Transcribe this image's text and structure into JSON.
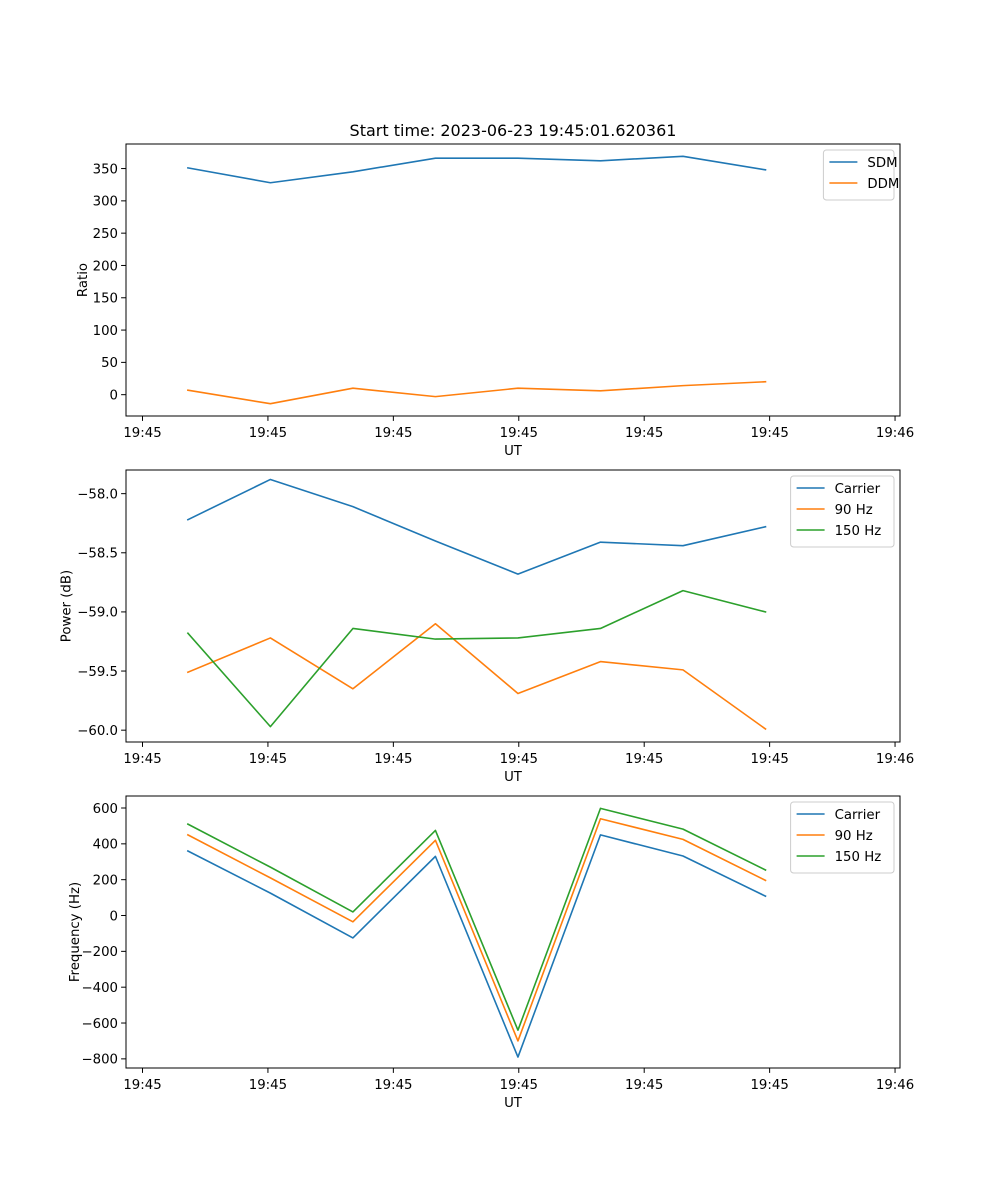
{
  "chart_data": [
    {
      "type": "line",
      "title": "Start time: 2023-06-23 19:45:01.620361",
      "xlabel": "UT",
      "ylabel": "Ratio",
      "x_index": [
        0,
        1,
        2,
        3,
        4,
        5,
        6,
        7
      ],
      "xlim": [
        -0.75,
        8.63
      ],
      "xticks": [
        -0.55,
        0.97,
        2.49,
        4.01,
        5.53,
        7.05,
        8.57
      ],
      "xtick_labels": [
        "19:45",
        "19:45",
        "19:45",
        "19:45",
        "19:45",
        "19:45",
        "19:46"
      ],
      "ylim": [
        -33,
        388
      ],
      "yticks": [
        0,
        50,
        100,
        150,
        200,
        250,
        300,
        350
      ],
      "ytick_labels": [
        "0",
        "50",
        "100",
        "150",
        "200",
        "250",
        "300",
        "350"
      ],
      "legend": "top-right",
      "series": [
        {
          "name": "SDM",
          "color": "#1f77b4",
          "values": [
            351,
            328,
            345,
            366,
            366,
            362,
            369,
            348
          ]
        },
        {
          "name": "DDM",
          "color": "#ff7f0e",
          "values": [
            7,
            -14,
            10,
            -3,
            10,
            6,
            14,
            20
          ]
        }
      ]
    },
    {
      "type": "line",
      "title": "",
      "xlabel": "UT",
      "ylabel": "Power (dB)",
      "x_index": [
        0,
        1,
        2,
        3,
        4,
        5,
        6,
        7
      ],
      "xlim": [
        -0.75,
        8.63
      ],
      "xticks": [
        -0.55,
        0.97,
        2.49,
        4.01,
        5.53,
        7.05,
        8.57
      ],
      "xtick_labels": [
        "19:45",
        "19:45",
        "19:45",
        "19:45",
        "19:45",
        "19:45",
        "19:46"
      ],
      "ylim": [
        -60.1,
        -57.8
      ],
      "yticks": [
        -60.0,
        -59.5,
        -59.0,
        -58.5,
        -58.0
      ],
      "ytick_labels": [
        "−60.0",
        "−59.5",
        "−59.0",
        "−58.5",
        "−58.0"
      ],
      "legend": "top-right",
      "series": [
        {
          "name": "Carrier",
          "color": "#1f77b4",
          "values": [
            -58.22,
            -57.88,
            -58.11,
            -58.4,
            -58.68,
            -58.41,
            -58.44,
            -58.28
          ]
        },
        {
          "name": "90 Hz",
          "color": "#ff7f0e",
          "values": [
            -59.51,
            -59.22,
            -59.65,
            -59.1,
            -59.69,
            -59.42,
            -59.49,
            -59.99
          ]
        },
        {
          "name": "150 Hz",
          "color": "#2ca02c",
          "values": [
            -59.18,
            -59.97,
            -59.14,
            -59.23,
            -59.22,
            -59.14,
            -58.82,
            -59.0
          ]
        }
      ]
    },
    {
      "type": "line",
      "title": "",
      "xlabel": "UT",
      "ylabel": "Frequency (Hz)",
      "x_index": [
        0,
        1,
        2,
        3,
        4,
        5,
        6,
        7
      ],
      "xlim": [
        -0.75,
        8.63
      ],
      "xticks": [
        -0.55,
        0.97,
        2.49,
        4.01,
        5.53,
        7.05,
        8.57
      ],
      "xtick_labels": [
        "19:45",
        "19:45",
        "19:45",
        "19:45",
        "19:45",
        "19:45",
        "19:46"
      ],
      "ylim": [
        -851,
        667
      ],
      "yticks": [
        -800,
        -600,
        -400,
        -200,
        0,
        200,
        400,
        600
      ],
      "ytick_labels": [
        "−800",
        "−600",
        "−400",
        "−200",
        "0",
        "200",
        "400",
        "600"
      ],
      "legend": "top-right",
      "series": [
        {
          "name": "Carrier",
          "color": "#1f77b4",
          "values": [
            360,
            125,
            -125,
            330,
            -790,
            450,
            332,
            108
          ]
        },
        {
          "name": "90 Hz",
          "color": "#ff7f0e",
          "values": [
            450,
            210,
            -35,
            420,
            -700,
            540,
            425,
            196
          ]
        },
        {
          "name": "150 Hz",
          "color": "#2ca02c",
          "values": [
            510,
            270,
            20,
            475,
            -640,
            598,
            482,
            254
          ]
        }
      ]
    }
  ]
}
